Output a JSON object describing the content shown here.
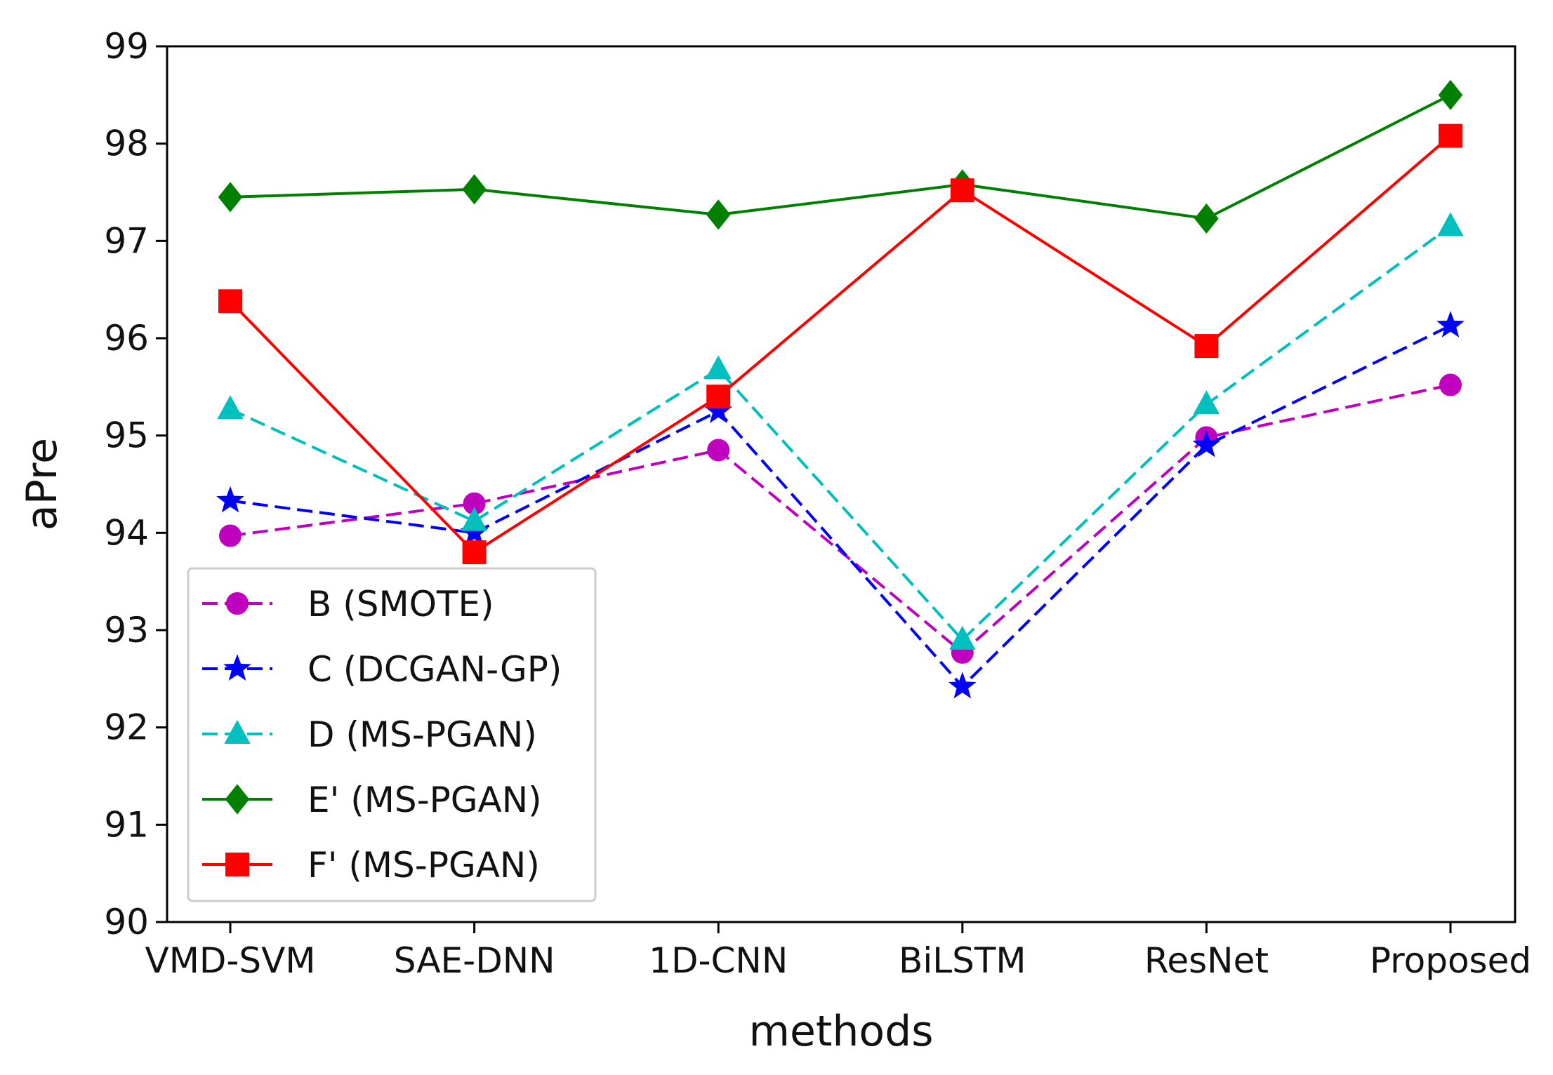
{
  "chart_data": {
    "type": "line",
    "xlabel": "methods",
    "ylabel": "aPre",
    "categories": [
      "VMD-SVM",
      "SAE-DNN",
      "1D-CNN",
      "BiLSTM",
      "ResNet",
      "Proposed"
    ],
    "ylim": [
      90,
      99
    ],
    "yticks": [
      90,
      91,
      92,
      93,
      94,
      95,
      96,
      97,
      98,
      99
    ],
    "grid": false,
    "legend_position": "lower-left",
    "series": [
      {
        "name": "B (SMOTE)",
        "color": "#bf00bf",
        "line_style": "dashed",
        "marker": "circle",
        "values": [
          93.97,
          94.3,
          94.85,
          92.77,
          94.98,
          95.52
        ]
      },
      {
        "name": "C (DCGAN-GP)",
        "color": "#0000ff",
        "line_style": "dashed",
        "marker": "star",
        "values": [
          94.33,
          94.0,
          95.25,
          92.42,
          94.9,
          96.13
        ]
      },
      {
        "name": "D (MS-PGAN)",
        "color": "#00bfbf",
        "line_style": "dashed",
        "marker": "triangle",
        "values": [
          95.27,
          94.12,
          95.68,
          92.9,
          95.32,
          97.15
        ]
      },
      {
        "name": "E' (MS-PGAN)",
        "color": "#008000",
        "line_style": "solid",
        "marker": "diamond",
        "values": [
          97.45,
          97.53,
          97.27,
          97.58,
          97.23,
          98.5
        ]
      },
      {
        "name": "F' (MS-PGAN)",
        "color": "#ff0000",
        "line_style": "solid",
        "marker": "square",
        "values": [
          96.38,
          93.8,
          95.4,
          97.52,
          95.92,
          98.08
        ]
      }
    ]
  }
}
